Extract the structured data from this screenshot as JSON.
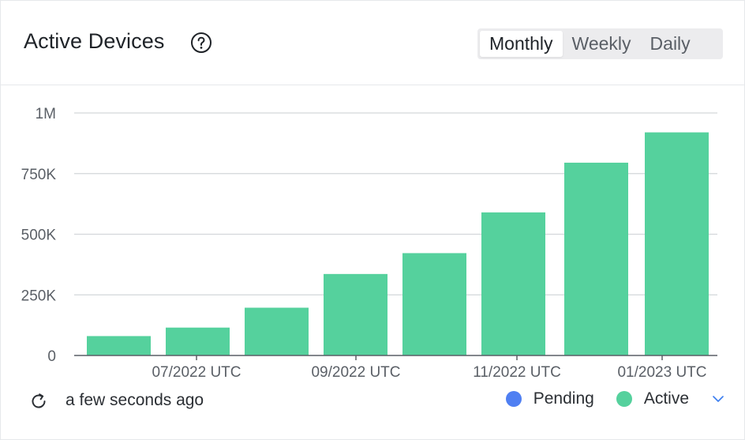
{
  "header": {
    "title": "Active Devices",
    "tabs": [
      {
        "label": "Monthly",
        "active": true
      },
      {
        "label": "Weekly",
        "active": false
      },
      {
        "label": "Daily",
        "active": false
      }
    ]
  },
  "footer": {
    "updated_text": "a few seconds ago",
    "legend": [
      {
        "label": "Pending",
        "color": "#4f7ff2"
      },
      {
        "label": "Active",
        "color": "#55d19d"
      }
    ]
  },
  "icons": {
    "help": "question-circle-icon",
    "refresh": "refresh-icon",
    "expand": "chevron-down-icon"
  },
  "chart_data": {
    "type": "bar",
    "values": [
      80000,
      115000,
      197000,
      336000,
      422000,
      590000,
      795000,
      920000
    ],
    "x_tick_labels": [
      "07/2022 UTC",
      "09/2022 UTC",
      "11/2022 UTC",
      "01/2023 UTC"
    ],
    "y_tick_labels": [
      "0",
      "250K",
      "500K",
      "750K",
      "1M"
    ],
    "y_ticks": [
      0,
      250000,
      500000,
      750000,
      1000000
    ],
    "ylim": [
      0,
      1000000
    ],
    "grid": true,
    "series": [
      {
        "name": "Active",
        "color": "#55d19d"
      }
    ]
  }
}
